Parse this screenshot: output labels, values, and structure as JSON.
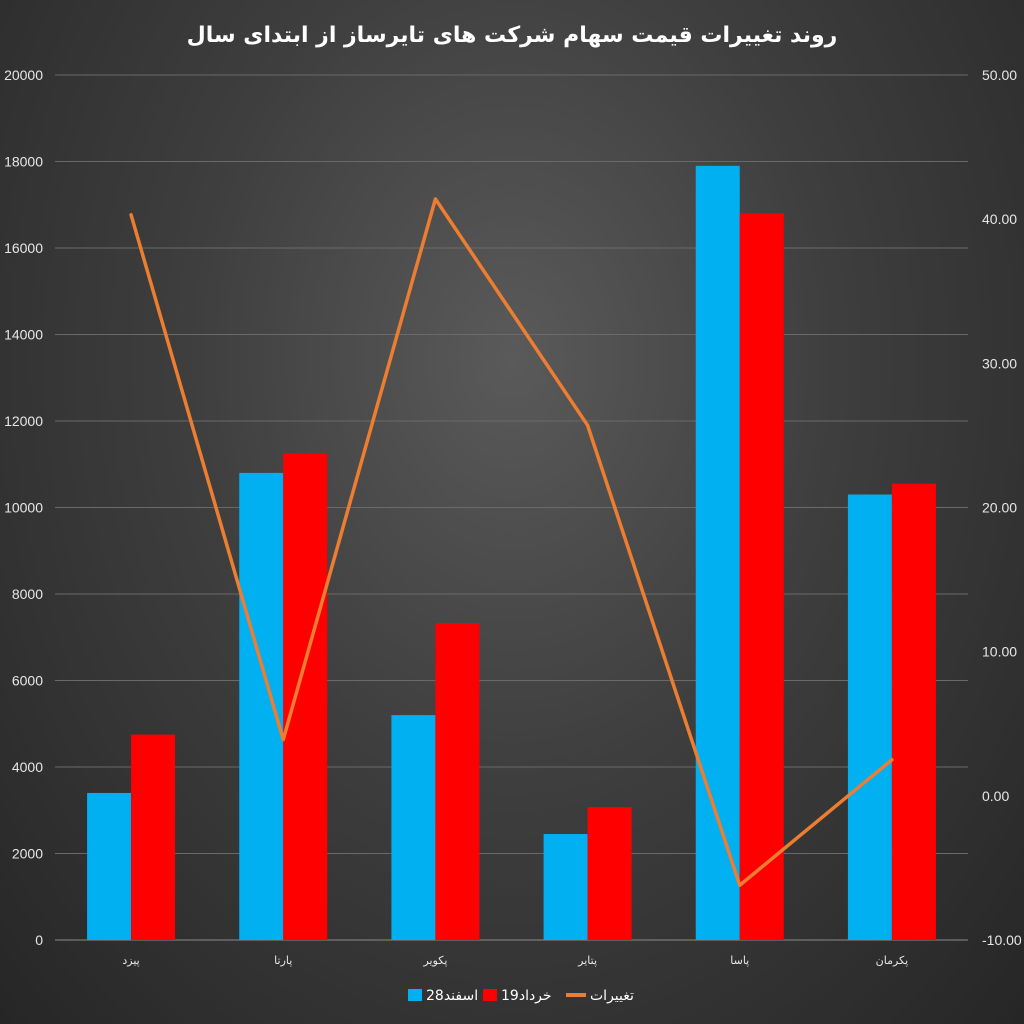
{
  "chart_data": {
    "type": "bar",
    "title": "روند تغییرات قیمت سهام شرکت های تایرساز از ابتدای سال",
    "categories": [
      "پیزد",
      "پارتا",
      "پکویر",
      "پتایر",
      "پاسا",
      "پکرمان"
    ],
    "series": [
      {
        "name": "28اسفند",
        "type": "bar",
        "axis": "left",
        "color": "#00b0f0",
        "values": [
          3400,
          10800,
          5200,
          2450,
          17900,
          10300
        ]
      },
      {
        "name": "19خرداد",
        "type": "bar",
        "axis": "left",
        "color": "#ff0000",
        "values": [
          4750,
          11250,
          7330,
          3070,
          16800,
          10550
        ]
      },
      {
        "name": "تغییرات",
        "type": "line",
        "axis": "right",
        "color": "#ed7d31",
        "values": [
          40.3,
          3.9,
          41.4,
          25.7,
          -6.2,
          2.5
        ]
      }
    ],
    "y_left": {
      "min": 0,
      "max": 20000,
      "ticks": [
        0,
        2000,
        4000,
        6000,
        8000,
        10000,
        12000,
        14000,
        16000,
        18000,
        20000
      ],
      "tick_labels": [
        "0",
        "2000",
        "4000",
        "6000",
        "8000",
        "10000",
        "12000",
        "14000",
        "16000",
        "18000",
        "20000"
      ]
    },
    "y_right": {
      "min": -10,
      "max": 50,
      "ticks": [
        -10,
        0,
        10,
        20,
        30,
        40,
        50
      ],
      "tick_labels": [
        "-10.00",
        "0.00",
        "10.00",
        "20.00",
        "30.00",
        "40.00",
        "50.00"
      ]
    },
    "xlabel": "",
    "ylabel": "",
    "grid": true,
    "legend_position": "bottom"
  }
}
